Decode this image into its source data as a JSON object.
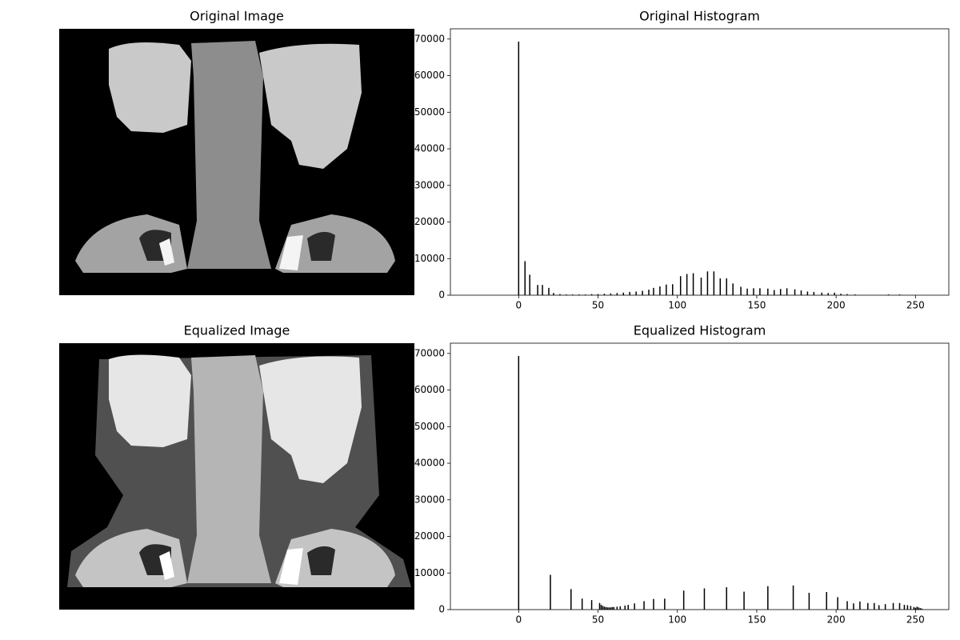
{
  "chart_data": [
    {
      "type": "image",
      "title": "Original Image"
    },
    {
      "type": "bar",
      "title": "Original Histogram",
      "color": "#000000",
      "x": [
        0,
        4,
        7,
        12,
        15,
        19,
        22,
        26,
        30,
        34,
        38,
        42,
        46,
        50,
        54,
        58,
        62,
        66,
        70,
        74,
        78,
        82,
        85,
        89,
        93,
        97,
        102,
        106,
        110,
        115,
        119,
        123,
        127,
        131,
        135,
        140,
        144,
        148,
        152,
        157,
        161,
        165,
        169,
        174,
        178,
        182,
        186,
        191,
        195,
        199,
        203,
        207,
        212,
        233,
        240
      ],
      "values": [
        69300,
        9300,
        5600,
        2800,
        2800,
        2000,
        600,
        300,
        200,
        200,
        200,
        200,
        300,
        300,
        400,
        500,
        600,
        700,
        900,
        1000,
        1200,
        1500,
        2000,
        2400,
        2900,
        3000,
        5200,
        5800,
        6000,
        4800,
        6500,
        6500,
        4600,
        4600,
        3200,
        2300,
        1800,
        1900,
        1900,
        1800,
        1400,
        1700,
        1900,
        1600,
        1300,
        1000,
        900,
        700,
        600,
        700,
        400,
        300,
        200,
        200,
        200
      ],
      "xlim": [
        -43,
        271
      ],
      "ylim": [
        0,
        72800
      ],
      "xticks": [
        0,
        50,
        100,
        150,
        200,
        250
      ],
      "yticks": [
        0,
        10000,
        20000,
        30000,
        40000,
        50000,
        60000,
        70000
      ]
    },
    {
      "type": "image",
      "title": "Equalized Image"
    },
    {
      "type": "bar",
      "title": "Equalized Histogram",
      "color": "#000000",
      "x": [
        0,
        20,
        33,
        40,
        46,
        51,
        52,
        53,
        54,
        55,
        56,
        57,
        58,
        59,
        60,
        62,
        64,
        67,
        69,
        73,
        79,
        85,
        92,
        104,
        117,
        131,
        142,
        157,
        173,
        183,
        194,
        201,
        207,
        211,
        215,
        220,
        224,
        227,
        231,
        236,
        240,
        243,
        245,
        247,
        249,
        250,
        251,
        252,
        253,
        254
      ],
      "values": [
        69300,
        9500,
        5600,
        3000,
        2600,
        1800,
        1300,
        1000,
        800,
        700,
        600,
        600,
        600,
        700,
        700,
        800,
        900,
        1100,
        1300,
        1700,
        2300,
        2900,
        3000,
        5200,
        5800,
        6100,
        4900,
        6400,
        6600,
        4600,
        4800,
        3400,
        2300,
        1700,
        2200,
        1800,
        1800,
        1200,
        1500,
        1800,
        1800,
        1300,
        1200,
        1000,
        700,
        500,
        800,
        600,
        400,
        300
      ],
      "xlim": [
        -43,
        271
      ],
      "ylim": [
        0,
        72800
      ],
      "xticks": [
        0,
        50,
        100,
        150,
        200,
        250
      ],
      "yticks": [
        0,
        10000,
        20000,
        30000,
        40000,
        50000,
        60000,
        70000
      ]
    }
  ]
}
